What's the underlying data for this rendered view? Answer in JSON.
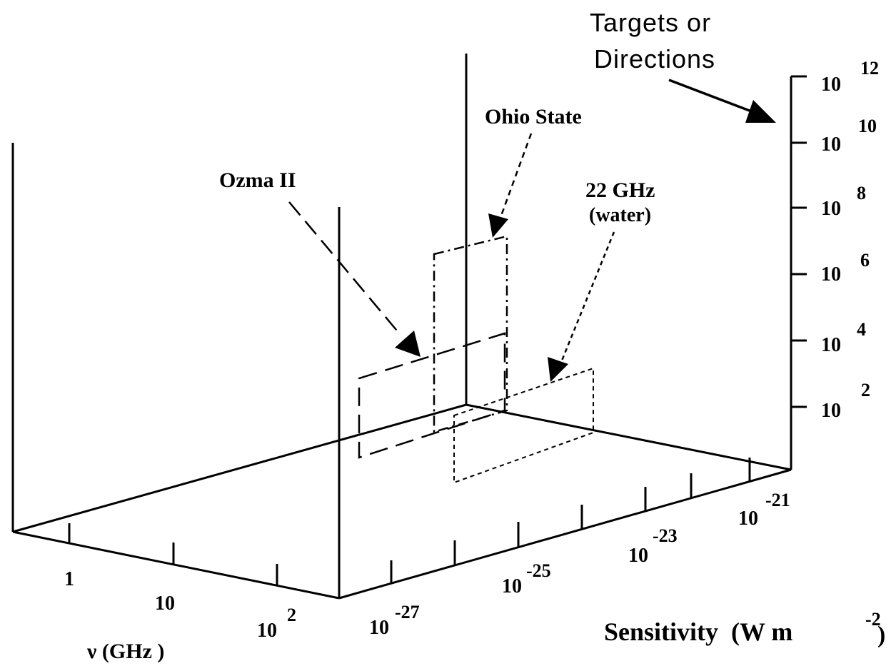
{
  "targets_label": {
    "line1": "Targets or",
    "line2": "Directions"
  },
  "vertical_axis_ticks": [
    {
      "base": "10",
      "exp": "12"
    },
    {
      "base": "10",
      "exp": "10"
    },
    {
      "base": "10",
      "exp": "8"
    },
    {
      "base": "10",
      "exp": "6"
    },
    {
      "base": "10",
      "exp": "4"
    },
    {
      "base": "10",
      "exp": "2"
    }
  ],
  "sensitivity_ticks": [
    {
      "base": "10",
      "exp": "-27"
    },
    {
      "base": "10",
      "exp": "-25"
    },
    {
      "base": "10",
      "exp": "-23"
    },
    {
      "base": "10",
      "exp": "-21"
    }
  ],
  "sensitivity_label": {
    "text": "Sensitivity  (W m",
    "exp": "-2",
    "close": ")"
  },
  "frequency_ticks": [
    {
      "base": "1",
      "exp": ""
    },
    {
      "base": "10",
      "exp": ""
    },
    {
      "base": "10",
      "exp": "2"
    }
  ],
  "frequency_label": "ν (GHz )",
  "searches": [
    {
      "label": "Ozma II",
      "style": "long-dash"
    },
    {
      "label": "Ohio State",
      "style": "dash-dot"
    },
    {
      "label": "22 GHz",
      "sublabel": "(water)",
      "style": "short-dash"
    }
  ]
}
